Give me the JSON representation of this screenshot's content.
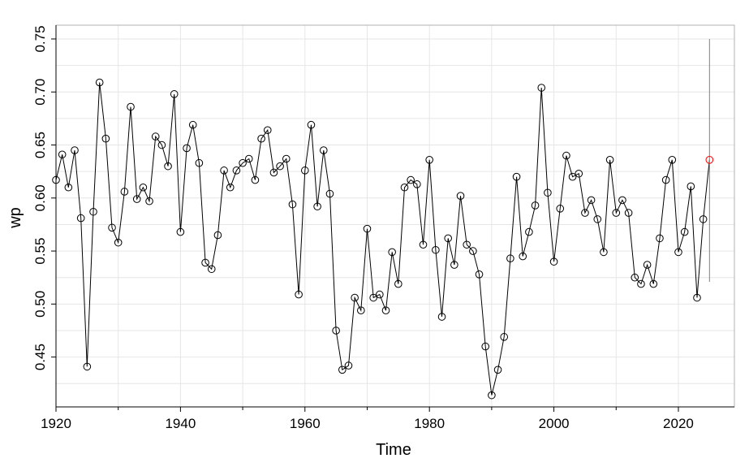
{
  "chart_data": {
    "type": "line",
    "title": "",
    "xlabel": "Time",
    "ylabel": "wp",
    "xlim": [
      1920,
      2029
    ],
    "ylim": [
      0.403,
      0.763
    ],
    "xticks": [
      1920,
      1940,
      1960,
      1980,
      2000,
      2020
    ],
    "xtick_labels": [
      "1920",
      "1940",
      "1960",
      "1980",
      "2000",
      "2020"
    ],
    "yticks": [
      0.45,
      0.5,
      0.55,
      0.6,
      0.65,
      0.7,
      0.75
    ],
    "ytick_labels": [
      "0.45",
      "0.50",
      "0.55",
      "0.60",
      "0.65",
      "0.70",
      "0.75"
    ],
    "grid": true,
    "series": [
      {
        "x": [
          1920,
          1921,
          1922,
          1923,
          1924,
          1925,
          1926,
          1927,
          1928,
          1929,
          1930,
          1931,
          1932,
          1933,
          1934,
          1935,
          1936,
          1937,
          1938,
          1939,
          1940,
          1941,
          1942,
          1943,
          1944,
          1945,
          1946,
          1947,
          1948,
          1949,
          1950,
          1951,
          1952,
          1953,
          1954,
          1955,
          1956,
          1957,
          1958,
          1959,
          1960,
          1961,
          1962,
          1963,
          1964,
          1965,
          1966,
          1967,
          1968,
          1969,
          1970,
          1971,
          1972,
          1973,
          1974,
          1975,
          1976,
          1977,
          1978,
          1979,
          1980,
          1981,
          1982,
          1983,
          1984,
          1985,
          1986,
          1987,
          1988,
          1989,
          1990,
          1991,
          1992,
          1993,
          1994,
          1995,
          1996,
          1997,
          1998,
          1999,
          2000,
          2001,
          2002,
          2003,
          2004,
          2005,
          2006,
          2007,
          2008,
          2009,
          2010,
          2011,
          2012,
          2013,
          2014,
          2015,
          2016,
          2017,
          2018,
          2019,
          2020,
          2021,
          2022,
          2023,
          2024
        ],
        "values": [
          0.617,
          0.641,
          0.61,
          0.645,
          0.581,
          0.441,
          0.587,
          0.709,
          0.656,
          0.572,
          0.558,
          0.606,
          0.686,
          0.599,
          0.61,
          0.597,
          0.658,
          0.65,
          0.63,
          0.698,
          0.568,
          0.647,
          0.669,
          0.633,
          0.539,
          0.533,
          0.565,
          0.626,
          0.61,
          0.626,
          0.633,
          0.637,
          0.617,
          0.656,
          0.664,
          0.624,
          0.63,
          0.637,
          0.594,
          0.509,
          0.626,
          0.669,
          0.592,
          0.645,
          0.604,
          0.475,
          0.438,
          0.442,
          0.506,
          0.494,
          0.571,
          0.506,
          0.509,
          0.494,
          0.549,
          0.519,
          0.61,
          0.617,
          0.613,
          0.556,
          0.636,
          0.551,
          0.488,
          0.562,
          0.537,
          0.602,
          0.556,
          0.55,
          0.528,
          0.46,
          0.414,
          0.438,
          0.469,
          0.543,
          0.62,
          0.545,
          0.568,
          0.593,
          0.704,
          0.605,
          0.54,
          0.59,
          0.64,
          0.62,
          0.623,
          0.586,
          0.598,
          0.58,
          0.549,
          0.636,
          0.586,
          0.598,
          0.586,
          0.525,
          0.519,
          0.537,
          0.519,
          0.562,
          0.617,
          0.636,
          0.549,
          0.568,
          0.611,
          0.506,
          0.58
        ]
      }
    ],
    "forecast": {
      "x": 2025,
      "value": 0.636,
      "lower": 0.521,
      "upper": 0.75
    },
    "colors": {
      "series": "#000000",
      "forecast_point": "#ff0000",
      "interval": "#808080",
      "grid": "#e6e6e6"
    }
  }
}
